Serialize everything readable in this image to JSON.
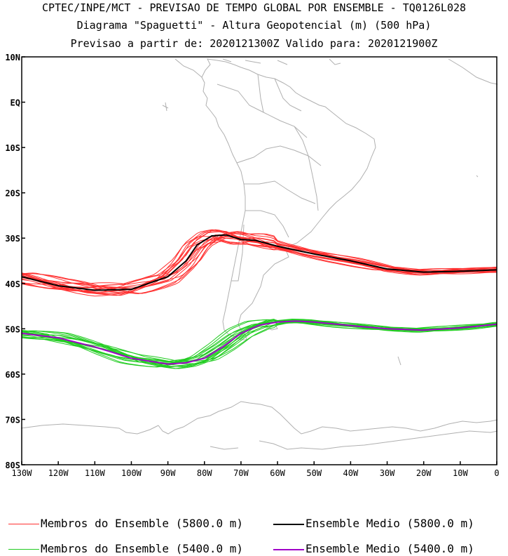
{
  "title": {
    "line1": "CPTEC/INPE/MCT - PREVISAO DE TEMPO GLOBAL POR ENSEMBLE - TQ0126L028",
    "line2": "Diagrama \"Spaguetti\" - Altura Geopotencial (m) (500 hPa)",
    "line3": "Previsao a partir de: 2020121300Z  Valido para: 2020121900Z"
  },
  "axes": {
    "lat_labels": [
      "10N",
      "EQ",
      "10S",
      "20S",
      "30S",
      "40S",
      "50S",
      "60S",
      "70S",
      "80S"
    ],
    "lon_labels": [
      "130W",
      "120W",
      "110W",
      "100W",
      "90W",
      "80W",
      "70W",
      "60W",
      "50W",
      "40W",
      "30W",
      "20W",
      "10W",
      "0"
    ],
    "lat_range": [
      -80,
      10
    ],
    "lon_range": [
      -130,
      0
    ]
  },
  "legend": {
    "members_5800": "Membros do Ensemble (5800.0 m)",
    "mean_5800": "Ensemble Medio (5800.0 m)",
    "members_5400": "Membros do Ensemble (5400.0 m)",
    "mean_5400": "Ensemble Medio (5400.0 m)"
  },
  "colors": {
    "members_5800": "#ff3030",
    "mean_5800": "#000000",
    "members_5400": "#22cc22",
    "mean_5400": "#a000c8",
    "coastline": "#b0b0b0"
  },
  "chart_data": {
    "type": "line",
    "series": [
      {
        "name": "Ensemble Medio (5800.0 m)",
        "lon": [
          -130,
          -120,
          -110,
          -100,
          -90,
          -85,
          -82,
          -78,
          -74,
          -70,
          -66,
          -60,
          -50,
          -40,
          -30,
          -20,
          -10,
          0
        ],
        "lat": [
          -38.5,
          -40.5,
          -41.5,
          -41.3,
          -38.5,
          -35,
          -31.5,
          -29.5,
          -29.3,
          -30.3,
          -30.5,
          -31.8,
          -33.5,
          -35,
          -36.8,
          -37.5,
          -37.3,
          -37
        ]
      },
      {
        "name": "Ensemble Medio (5400.0 m)",
        "lon": [
          -130,
          -120,
          -110,
          -100,
          -90,
          -85,
          -80,
          -75,
          -70,
          -65,
          -60,
          -55,
          -50,
          -40,
          -30,
          -20,
          -10,
          0
        ],
        "lat": [
          -51,
          -52,
          -54,
          -56.5,
          -57.8,
          -57.5,
          -56.5,
          -54,
          -51,
          -49.2,
          -48.5,
          -48.3,
          -48.5,
          -49.3,
          -50,
          -50.3,
          -49.8,
          -49
        ]
      }
    ]
  }
}
